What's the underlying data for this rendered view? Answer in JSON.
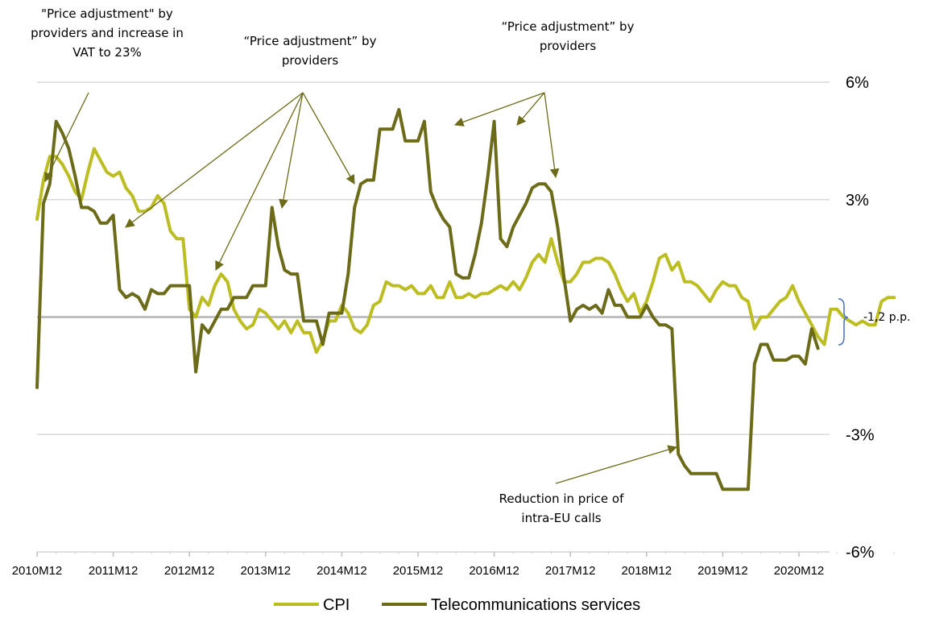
{
  "chart_data": {
    "type": "line",
    "ylim": [
      -6,
      6
    ],
    "y_ticks": [
      "6%",
      "3%",
      "-3%",
      "-6%"
    ],
    "y_tick_values": [
      6,
      3,
      -3,
      -6
    ],
    "x_tick_labels": [
      "2010M12",
      "2011M12",
      "2012M12",
      "2013M12",
      "2014M12",
      "2015M12",
      "2016M12",
      "2017M12",
      "2018M12",
      "2019M12",
      "2020M12"
    ],
    "x_start": "2010M12",
    "grid": "horizontal",
    "legend_position": "bottom",
    "series": [
      {
        "name": "CPI",
        "color": "#bcbd22",
        "values": [
          2.5,
          3.5,
          4.1,
          4.1,
          3.9,
          3.6,
          3.2,
          3.0,
          3.7,
          4.3,
          4.0,
          3.7,
          3.6,
          3.7,
          3.3,
          3.1,
          2.7,
          2.7,
          2.8,
          3.1,
          2.9,
          2.2,
          2.0,
          2.0,
          0.2,
          0.0,
          0.5,
          0.3,
          0.8,
          1.1,
          0.9,
          0.2,
          -0.1,
          -0.3,
          -0.2,
          0.2,
          0.1,
          -0.1,
          -0.3,
          -0.1,
          -0.4,
          -0.1,
          -0.4,
          -0.4,
          -0.9,
          -0.6,
          -0.1,
          -0.1,
          0.3,
          0.1,
          -0.3,
          -0.4,
          -0.2,
          0.3,
          0.4,
          0.9,
          0.8,
          0.8,
          0.7,
          0.8,
          0.6,
          0.6,
          0.8,
          0.5,
          0.5,
          0.9,
          0.5,
          0.5,
          0.6,
          0.5,
          0.6,
          0.6,
          0.7,
          0.8,
          0.7,
          0.9,
          0.7,
          1.0,
          1.4,
          1.6,
          1.4,
          2.0,
          1.4,
          0.9,
          0.9,
          1.1,
          1.4,
          1.4,
          1.5,
          1.5,
          1.4,
          1.1,
          0.7,
          0.4,
          0.6,
          0.1,
          0.4,
          0.9,
          1.5,
          1.6,
          1.2,
          1.4,
          0.9,
          0.9,
          0.8,
          0.6,
          0.4,
          0.7,
          0.9,
          0.8,
          0.8,
          0.5,
          0.4,
          -0.3,
          0.0,
          0.0,
          0.2,
          0.4,
          0.5,
          0.8,
          0.4,
          0.1,
          -0.2,
          -0.5,
          -0.7,
          0.2,
          0.2,
          0.0,
          -0.1,
          -0.2,
          -0.1,
          -0.2,
          -0.2,
          0.4,
          0.5,
          0.5
        ]
      },
      {
        "name": "Telecommunications services",
        "color": "#6b6b1a",
        "values": [
          -1.8,
          2.9,
          3.4,
          5.0,
          4.7,
          4.3,
          3.6,
          2.8,
          2.8,
          2.7,
          2.4,
          2.4,
          2.6,
          0.7,
          0.5,
          0.6,
          0.5,
          0.2,
          0.7,
          0.6,
          0.6,
          0.8,
          0.8,
          0.8,
          0.8,
          -1.4,
          -0.2,
          -0.4,
          -0.1,
          0.2,
          0.2,
          0.5,
          0.5,
          0.5,
          0.8,
          0.8,
          0.8,
          2.8,
          1.8,
          1.2,
          1.1,
          1.1,
          -0.1,
          -0.1,
          -0.1,
          -0.7,
          0.1,
          0.1,
          0.1,
          1.1,
          2.8,
          3.4,
          3.5,
          3.5,
          4.8,
          4.8,
          4.8,
          5.3,
          4.5,
          4.5,
          4.5,
          5.0,
          3.2,
          2.8,
          2.5,
          2.3,
          1.1,
          1.0,
          1.0,
          1.6,
          2.4,
          3.6,
          5.0,
          2.0,
          1.8,
          2.3,
          2.6,
          2.9,
          3.3,
          3.4,
          3.4,
          3.2,
          2.3,
          1.0,
          -0.1,
          0.2,
          0.3,
          0.2,
          0.3,
          0.1,
          0.7,
          0.3,
          0.3,
          0.0,
          0.0,
          0.0,
          0.3,
          0.0,
          -0.2,
          -0.2,
          -0.3,
          -3.5,
          -3.8,
          -4.0,
          -4.0,
          -4.0,
          -4.0,
          -4.0,
          -4.4,
          -4.4,
          -4.4,
          -4.4,
          -4.4,
          -1.2,
          -0.7,
          -0.7,
          -1.1,
          -1.1,
          -1.1,
          -1.0,
          -1.0,
          -1.2,
          -0.3,
          -0.8
        ]
      }
    ],
    "annotations": [
      {
        "id": "a1",
        "lines": [
          "\"Price adjustment\" by",
          "providers and increase in",
          "VAT to 23%"
        ]
      },
      {
        "id": "a2",
        "lines": [
          "“Price adjustment” by",
          "providers"
        ]
      },
      {
        "id": "a3",
        "lines": [
          "“Price adjustment” by",
          "providers"
        ]
      },
      {
        "id": "a4",
        "lines": [
          "Reduction in price of",
          "intra-EU calls"
        ]
      }
    ],
    "gap_label": "-1,2 p.p."
  }
}
